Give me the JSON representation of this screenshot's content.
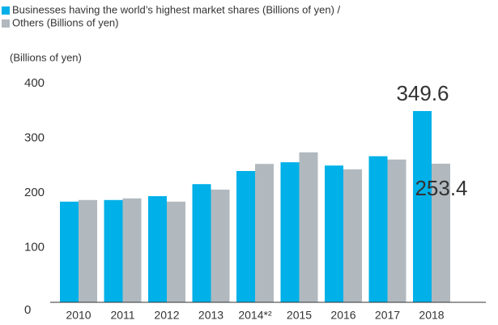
{
  "chart_data": {
    "type": "bar",
    "y_label": "(Billions of yen)",
    "categories": [
      "2010",
      "2011",
      "2012",
      "2013",
      "2014*²",
      "2015",
      "2016",
      "2017",
      "2018"
    ],
    "series": [
      {
        "name": "Businesses having the world’s highest market shares (Billions of yen) /",
        "color": "#00b0e8",
        "values": [
          184,
          187,
          194,
          216,
          240,
          256,
          250,
          267,
          349.6
        ],
        "value_labels": [
          null,
          null,
          null,
          null,
          null,
          null,
          null,
          null,
          "349.6"
        ]
      },
      {
        "name": "Others (Billions of yen)",
        "color": "#b1b9bf",
        "values": [
          187,
          190,
          184,
          206,
          253,
          274,
          243,
          261,
          253.4
        ],
        "value_labels": [
          null,
          null,
          null,
          null,
          null,
          null,
          null,
          null,
          "253.4"
        ]
      }
    ],
    "ylim": [
      0,
      400
    ],
    "yticks": [
      0,
      100,
      200,
      300,
      400
    ],
    "grid": false,
    "legend": "top-left"
  }
}
